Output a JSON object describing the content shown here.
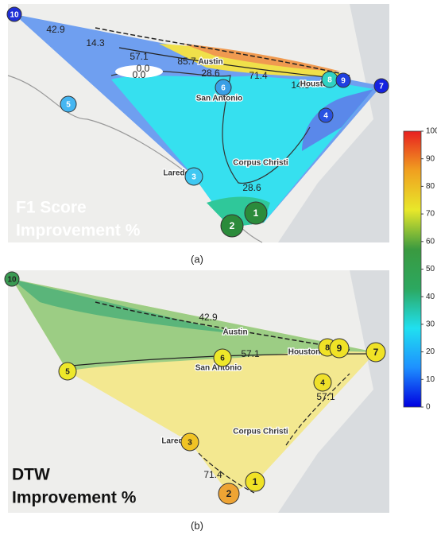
{
  "panels": [
    {
      "title_lines": [
        "F1 Score",
        "Improvement %"
      ],
      "caption": "(a)",
      "cities": [
        "Austin",
        "San Antonio",
        "Houston",
        "Corpus Christi",
        "Laredo"
      ],
      "contour_labels": [
        "42.9",
        "14.3",
        "57.1",
        "85.7",
        "71.4",
        "28.6",
        "0.0",
        "0.0",
        "14.3",
        "28.6"
      ],
      "nodes": [
        {
          "label": "10",
          "color": "#1f2fd6"
        },
        {
          "label": "5",
          "color": "#45b6f2"
        },
        {
          "label": "6",
          "color": "#3a9fe6"
        },
        {
          "label": "8",
          "color": "#2fd2c2"
        },
        {
          "label": "9",
          "color": "#1f3fe0"
        },
        {
          "label": "7",
          "color": "#1522e0"
        },
        {
          "label": "4",
          "color": "#2a52e2"
        },
        {
          "label": "3",
          "color": "#3fc8f2"
        },
        {
          "label": "1",
          "color": "#2b8b3b"
        },
        {
          "label": "2",
          "color": "#2b8b3b"
        }
      ]
    },
    {
      "title_lines": [
        "DTW",
        "Improvement %"
      ],
      "caption": "(b)",
      "cities": [
        "Austin",
        "San Antonio",
        "Houston",
        "Corpus Christi",
        "Laredo"
      ],
      "contour_labels": [
        "42.9",
        "57.1",
        "57.1",
        "71.4"
      ],
      "nodes": [
        {
          "label": "10",
          "color": "#3a9a52"
        },
        {
          "label": "5",
          "color": "#eee82a"
        },
        {
          "label": "6",
          "color": "#eee82a"
        },
        {
          "label": "8",
          "color": "#f0e226"
        },
        {
          "label": "9",
          "color": "#f0e226"
        },
        {
          "label": "7",
          "color": "#f0e226"
        },
        {
          "label": "4",
          "color": "#efe02a"
        },
        {
          "label": "3",
          "color": "#f0c324"
        },
        {
          "label": "1",
          "color": "#f0e226"
        },
        {
          "label": "2",
          "color": "#eea434"
        }
      ]
    }
  ],
  "colorbar": {
    "lim": [
      0,
      100
    ],
    "ticks": [
      0,
      10,
      20,
      30,
      40,
      50,
      60,
      70,
      80,
      90,
      100
    ],
    "colors": [
      "#0000e0",
      "#1e90ff",
      "#20e0f0",
      "#2ca860",
      "#3a9a40",
      "#e8e82a",
      "#f0a020",
      "#e82020"
    ]
  }
}
